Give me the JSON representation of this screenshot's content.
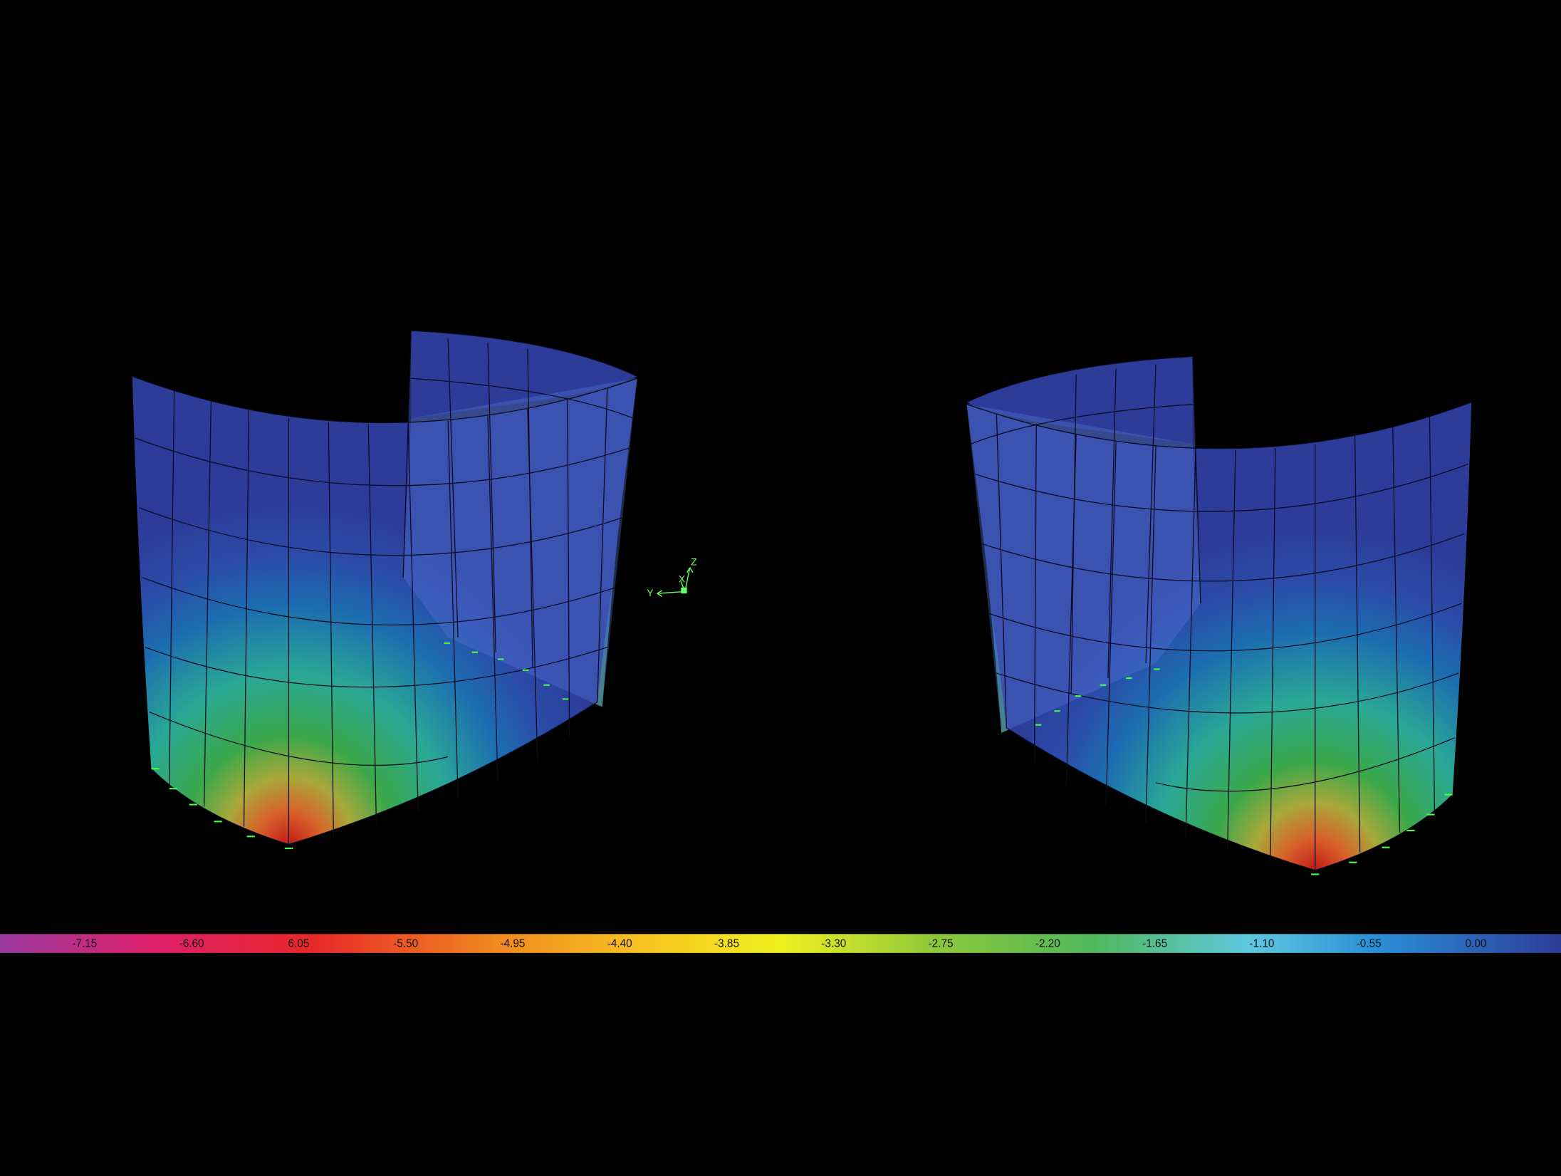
{
  "legend": {
    "labels": [
      "-7.15",
      "-6.60",
      "6.05",
      "-5.50",
      "-4.95",
      "-4.40",
      "-3.85",
      "-3.30",
      "-2.75",
      "-2.20",
      "-1.65",
      "-1.10",
      "-0.55",
      "0.00"
    ]
  },
  "axis_triad": {
    "z": "Z",
    "x": "X",
    "y": "Y"
  }
}
